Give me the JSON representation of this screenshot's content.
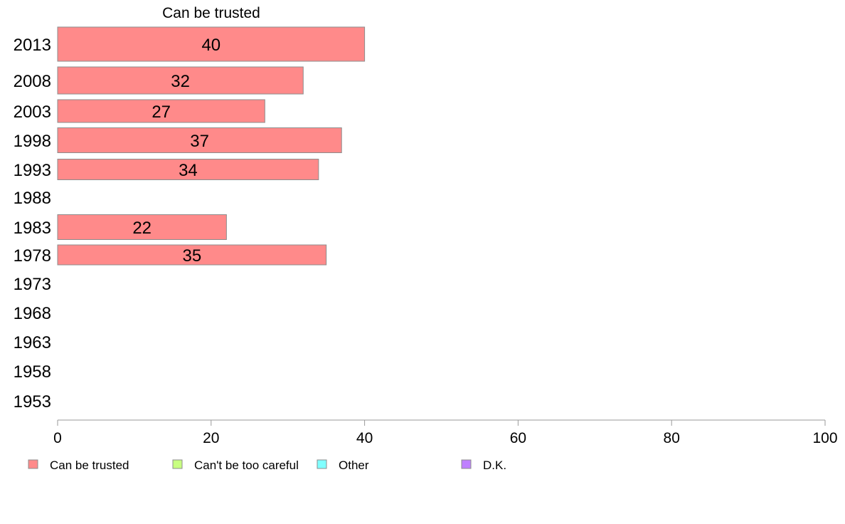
{
  "chart_data": {
    "type": "bar",
    "orientation": "horizontal",
    "title": "Can be trusted",
    "categories": [
      "2013",
      "2008",
      "2003",
      "1998",
      "1993",
      "1988",
      "1983",
      "1978",
      "1973",
      "1968",
      "1963",
      "1958",
      "1953"
    ],
    "series": [
      {
        "name": "Can be trusted",
        "color": "#ff8a8a",
        "values": [
          40,
          32,
          27,
          37,
          34,
          null,
          22,
          35,
          null,
          null,
          null,
          null,
          null
        ]
      }
    ],
    "xlim": [
      0,
      100
    ],
    "xticks": [
      "0",
      "20",
      "40",
      "60",
      "80",
      "100"
    ],
    "grid": false,
    "legend_position": "bottom",
    "legend": [
      {
        "label": "Can be trusted",
        "color": "#ff8a8a"
      },
      {
        "label": "Can't be too careful",
        "color": "#c8ff80"
      },
      {
        "label": "Other",
        "color": "#80ffff"
      },
      {
        "label": "D.K.",
        "color": "#bf80ff"
      }
    ]
  }
}
